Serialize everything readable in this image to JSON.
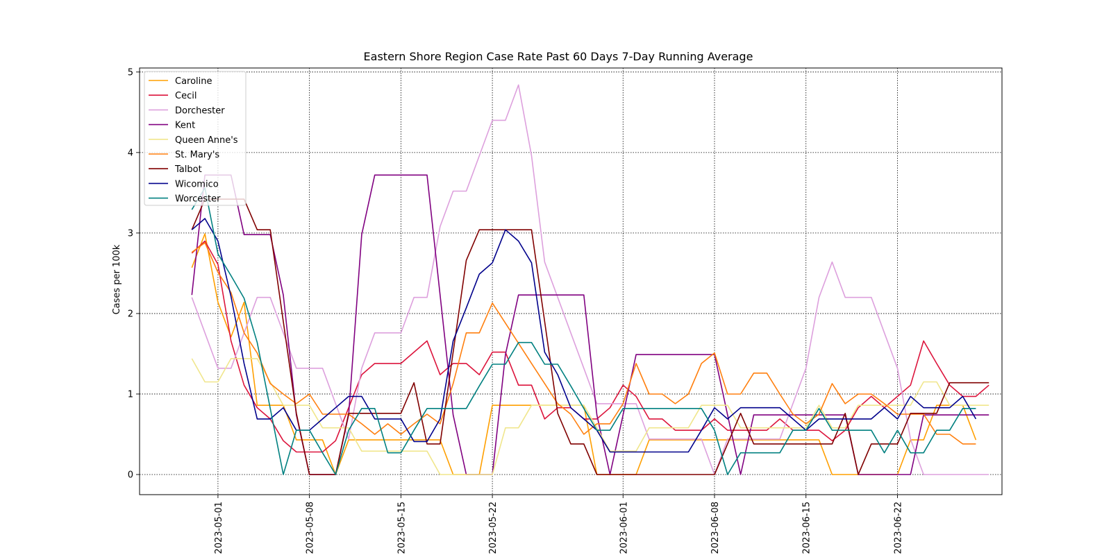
{
  "chart_data": {
    "type": "line",
    "title": "Eastern Shore Region Case Rate  Past 60 Days 7-Day Running Average",
    "xlabel": "",
    "ylabel": "Cases per 100k",
    "x_start": "2023-04-29",
    "x_end": "2023-06-28",
    "xlim": [
      "2023-04-25",
      "2023-06-30"
    ],
    "ylim": [
      -0.25,
      5.05
    ],
    "x_ticks": [
      "2023-05-01",
      "2023-05-08",
      "2023-05-15",
      "2023-05-22",
      "2023-06-01",
      "2023-06-08",
      "2023-06-15",
      "2023-06-22"
    ],
    "y_ticks": [
      0,
      1,
      2,
      3,
      4,
      5
    ],
    "grid": true,
    "legend": "upper left",
    "series": [
      {
        "name": "Caroline",
        "color": "#ff9f00",
        "values": [
          2.57,
          2.99,
          2.14,
          1.71,
          2.14,
          0.86,
          0.86,
          0.86,
          0.43,
          0.43,
          0.43,
          0,
          0.43,
          0.43,
          0.43,
          0.43,
          0.43,
          0.43,
          0.43,
          0.43,
          0,
          0,
          0,
          0.86,
          0.86,
          0.86,
          0.86,
          0.86,
          0.86,
          0.86,
          0.86,
          0,
          0,
          0,
          0,
          0.43,
          0.43,
          0.43,
          0.43,
          0.43,
          0.43,
          0.43,
          0.43,
          0.43,
          0.43,
          0.43,
          0.43,
          0.43,
          0.43,
          0,
          0,
          0,
          0,
          0,
          0,
          0.43,
          0.43,
          0.86,
          0.86,
          0.86,
          0.43
        ]
      },
      {
        "name": "Cecil",
        "color": "#dc143c",
        "values": [
          2.75,
          2.9,
          2.61,
          1.66,
          1.11,
          0.83,
          0.69,
          0.42,
          0.28,
          0.28,
          0.28,
          0.42,
          0.83,
          1.24,
          1.38,
          1.38,
          1.38,
          1.52,
          1.66,
          1.24,
          1.38,
          1.38,
          1.24,
          1.52,
          1.52,
          1.11,
          1.11,
          0.69,
          0.83,
          0.83,
          0.69,
          0.69,
          0.83,
          1.11,
          0.97,
          0.69,
          0.69,
          0.55,
          0.55,
          0.55,
          0.69,
          0.55,
          0.55,
          0.55,
          0.55,
          0.69,
          0.55,
          0.55,
          0.55,
          0.42,
          0.55,
          0.83,
          0.97,
          0.83,
          0.97,
          1.11,
          1.66,
          1.38,
          1.11,
          0.97,
          0.97,
          1.11
        ]
      },
      {
        "name": "Dorchester",
        "color": "#dda0dd",
        "values": [
          2.2,
          1.76,
          1.32,
          1.32,
          1.76,
          2.2,
          2.2,
          1.76,
          1.32,
          1.32,
          1.32,
          0.88,
          0.44,
          1.32,
          1.76,
          1.76,
          1.76,
          2.2,
          2.2,
          3.08,
          3.52,
          3.52,
          3.96,
          4.4,
          4.4,
          4.84,
          3.96,
          2.64,
          2.2,
          1.76,
          1.32,
          0.88,
          0.88,
          0.88,
          0.88,
          0.44,
          0.44,
          0.44,
          0.44,
          0.44,
          0,
          0.44,
          0.44,
          0.44,
          0.44,
          0.44,
          0.88,
          1.32,
          2.2,
          2.64,
          2.2,
          2.2,
          2.2,
          1.76,
          1.32,
          0.44,
          0,
          0,
          0,
          0,
          0,
          0
        ]
      },
      {
        "name": "Kent",
        "color": "#800080",
        "values": [
          2.23,
          3.72,
          3.72,
          3.72,
          2.98,
          2.98,
          2.98,
          2.23,
          0.74,
          0,
          0,
          0,
          0.74,
          2.98,
          3.72,
          3.72,
          3.72,
          3.72,
          3.72,
          2.23,
          0.74,
          0,
          0,
          0,
          1.49,
          2.23,
          2.23,
          2.23,
          2.23,
          2.23,
          2.23,
          0.74,
          0,
          0.74,
          1.49,
          1.49,
          1.49,
          1.49,
          1.49,
          1.49,
          1.49,
          0.74,
          0,
          0.74,
          0.74,
          0.74,
          0.74,
          0.74,
          0.74,
          0.74,
          0.74,
          0,
          0,
          0,
          0,
          0,
          0.74,
          0.74,
          0.74,
          0.74,
          0.74,
          0.74
        ]
      },
      {
        "name": "Queen Anne's",
        "color": "#f0e68c",
        "values": [
          1.44,
          1.15,
          1.15,
          1.44,
          1.44,
          1.44,
          1.15,
          0.86,
          0.86,
          0.86,
          0.58,
          0.58,
          0.58,
          0.29,
          0.29,
          0.29,
          0.29,
          0.29,
          0.29,
          0,
          0,
          0,
          0,
          0,
          0.58,
          0.58,
          0.86,
          0.86,
          0.86,
          0.86,
          0.86,
          0.58,
          0.29,
          0.29,
          0.29,
          0.58,
          0.58,
          0.58,
          0.58,
          0.86,
          0.86,
          0.86,
          0.58,
          0.58,
          0.58,
          0.58,
          0.58,
          0.58,
          0.86,
          0.58,
          0.58,
          0.86,
          0.86,
          0.86,
          0.86,
          0.86,
          1.15,
          1.15,
          0.86,
          0.86,
          0.86,
          0.86
        ]
      },
      {
        "name": "St. Mary's",
        "color": "#ff7f0e",
        "values": [
          2.76,
          2.88,
          2.51,
          2.26,
          1.76,
          1.51,
          1.13,
          1.0,
          0.88,
          1.0,
          0.75,
          0.75,
          0.75,
          0.63,
          0.5,
          0.63,
          0.5,
          0.63,
          0.75,
          0.63,
          1.13,
          1.76,
          1.76,
          2.13,
          1.88,
          1.63,
          1.38,
          1.13,
          0.88,
          0.75,
          0.5,
          0.63,
          0.63,
          0.88,
          1.38,
          1.0,
          1.0,
          0.88,
          1.0,
          1.38,
          1.51,
          1.0,
          1.0,
          1.26,
          1.26,
          1.0,
          0.75,
          0.63,
          0.75,
          1.13,
          0.88,
          1.0,
          1.0,
          0.88,
          0.75,
          0.75,
          0.75,
          0.5,
          0.5,
          0.38,
          0.38
        ]
      },
      {
        "name": "Talbot",
        "color": "#800000",
        "values": [
          3.04,
          3.42,
          3.42,
          3.42,
          3.42,
          3.04,
          3.04,
          1.9,
          0.76,
          0,
          0,
          0,
          0.76,
          0.76,
          0.76,
          0.76,
          0.76,
          1.14,
          0.38,
          0.38,
          1.52,
          2.66,
          3.04,
          3.04,
          3.04,
          3.04,
          3.04,
          1.9,
          0.76,
          0.38,
          0.38,
          0,
          0,
          0,
          0,
          0,
          0,
          0,
          0,
          0,
          0,
          0.38,
          0.76,
          0.38,
          0.38,
          0.38,
          0.38,
          0.38,
          0.38,
          0.38,
          0.76,
          0,
          0.38,
          0.38,
          0.38,
          0.76,
          0.76,
          0.76,
          1.14,
          1.14,
          1.14,
          1.14
        ]
      },
      {
        "name": "Wicomico",
        "color": "#00008b",
        "values": [
          3.04,
          3.18,
          2.9,
          2.21,
          1.38,
          0.69,
          0.69,
          0.83,
          0.55,
          0.55,
          0.69,
          0.83,
          0.97,
          0.97,
          0.69,
          0.69,
          0.69,
          0.41,
          0.41,
          0.69,
          1.66,
          2.07,
          2.49,
          2.63,
          3.04,
          2.9,
          2.63,
          1.52,
          1.24,
          0.83,
          0.69,
          0.55,
          0.28,
          0.28,
          0.28,
          0.28,
          0.28,
          0.28,
          0.28,
          0.55,
          0.83,
          0.69,
          0.83,
          0.83,
          0.83,
          0.83,
          0.69,
          0.55,
          0.69,
          0.69,
          0.69,
          0.69,
          0.69,
          0.83,
          0.69,
          0.97,
          0.83,
          0.83,
          0.83,
          0.97,
          0.69
        ]
      },
      {
        "name": "Worcester",
        "color": "#008080",
        "values": [
          3.29,
          3.56,
          2.74,
          2.47,
          2.19,
          1.64,
          0.82,
          0,
          0.55,
          0.55,
          0.27,
          0,
          0.55,
          0.82,
          0.82,
          0.27,
          0.27,
          0.55,
          0.82,
          0.82,
          0.82,
          0.82,
          1.1,
          1.37,
          1.37,
          1.64,
          1.64,
          1.37,
          1.37,
          1.1,
          0.82,
          0.55,
          0.55,
          0.82,
          0.82,
          0.82,
          0.82,
          0.82,
          0.82,
          0.82,
          0.55,
          0,
          0.27,
          0.27,
          0.27,
          0.27,
          0.55,
          0.55,
          0.82,
          0.55,
          0.55,
          0.55,
          0.55,
          0.27,
          0.55,
          0.27,
          0.27,
          0.55,
          0.55,
          0.82,
          0.82
        ]
      }
    ]
  }
}
